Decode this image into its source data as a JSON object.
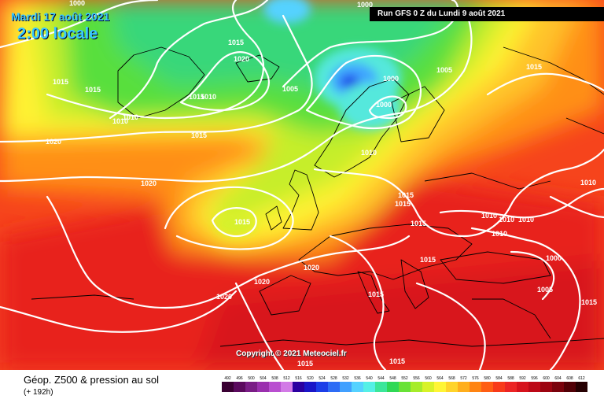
{
  "header": {
    "valid_date": "Mardi 17 août 2021",
    "valid_time": "2:00 locale",
    "run_label": "Run GFS 0 Z du Lundi 9 août 2021"
  },
  "map": {
    "copyright": "Copyright © 2021 Meteociel.fr",
    "isobar_labels": [
      {
        "text": "1000"
      },
      {
        "text": "1000"
      },
      {
        "text": "1015"
      },
      {
        "text": "1020"
      },
      {
        "text": "1015"
      },
      {
        "text": "1015"
      },
      {
        "text": "1015"
      },
      {
        "text": "1010"
      },
      {
        "text": "1015"
      },
      {
        "text": "1010"
      },
      {
        "text": "1005"
      },
      {
        "text": "1000"
      },
      {
        "text": "1000"
      },
      {
        "text": "1005"
      },
      {
        "text": "1015"
      },
      {
        "text": "1020"
      },
      {
        "text": "1015"
      },
      {
        "text": "1010"
      },
      {
        "text": "1020"
      },
      {
        "text": "1015"
      },
      {
        "text": "1015"
      },
      {
        "text": "1015"
      },
      {
        "text": "1015"
      },
      {
        "text": "1015"
      },
      {
        "text": "1010"
      },
      {
        "text": "1010"
      },
      {
        "text": "1010"
      },
      {
        "text": "1010"
      },
      {
        "text": "1010"
      },
      {
        "text": "1000"
      },
      {
        "text": "1005"
      },
      {
        "text": "1020"
      },
      {
        "text": "1020"
      },
      {
        "text": "1020"
      },
      {
        "text": "1015"
      },
      {
        "text": "1015"
      },
      {
        "text": "1015"
      },
      {
        "text": "1010"
      }
    ]
  },
  "footer": {
    "title": "Géop. Z500 & pression au sol",
    "lead_time": "(+ 192h)"
  },
  "legend": {
    "scale": [
      {
        "value": "492",
        "color": "#3a0033"
      },
      {
        "value": "496",
        "color": "#5b0a5e"
      },
      {
        "value": "500",
        "color": "#7a1d86"
      },
      {
        "value": "504",
        "color": "#9a2fae"
      },
      {
        "value": "508",
        "color": "#b94fd0"
      },
      {
        "value": "512",
        "color": "#d27ae6"
      },
      {
        "value": "516",
        "color": "#2a00a0"
      },
      {
        "value": "520",
        "color": "#1a16c8"
      },
      {
        "value": "524",
        "color": "#1c3ee8"
      },
      {
        "value": "528",
        "color": "#2e6cf5"
      },
      {
        "value": "532",
        "color": "#41a0ff"
      },
      {
        "value": "536",
        "color": "#55d2ff"
      },
      {
        "value": "540",
        "color": "#55f0e6"
      },
      {
        "value": "544",
        "color": "#3ce69a"
      },
      {
        "value": "548",
        "color": "#2fd855"
      },
      {
        "value": "552",
        "color": "#68e236"
      },
      {
        "value": "556",
        "color": "#a6ec2a"
      },
      {
        "value": "560",
        "color": "#d8f228"
      },
      {
        "value": "564",
        "color": "#fff535"
      },
      {
        "value": "568",
        "color": "#ffd42a"
      },
      {
        "value": "572",
        "color": "#ffae1c"
      },
      {
        "value": "576",
        "color": "#ff8412"
      },
      {
        "value": "580",
        "color": "#ff5e14"
      },
      {
        "value": "584",
        "color": "#f83a1a"
      },
      {
        "value": "588",
        "color": "#ec2424"
      },
      {
        "value": "592",
        "color": "#d6121c"
      },
      {
        "value": "596",
        "color": "#bc0816"
      },
      {
        "value": "600",
        "color": "#9c0410"
      },
      {
        "value": "604",
        "color": "#7a020c"
      },
      {
        "value": "608",
        "color": "#520006"
      },
      {
        "value": "612",
        "color": "#260002"
      }
    ]
  }
}
